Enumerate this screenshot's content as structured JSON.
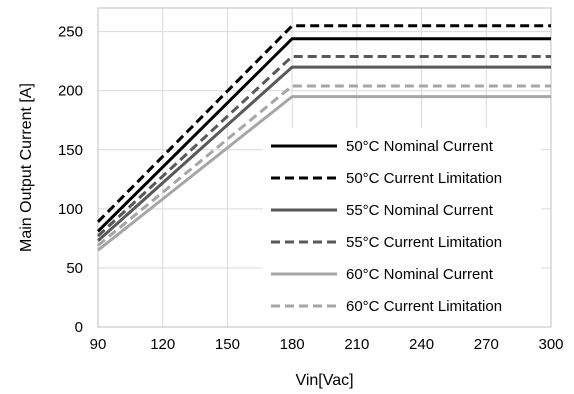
{
  "chart_data": {
    "type": "line",
    "title": "",
    "xlabel": "Vin[Vac]",
    "ylabel": "Main Output Current [A]",
    "xlim": [
      90,
      300
    ],
    "ylim": [
      0,
      270
    ],
    "xticks": [
      90,
      120,
      150,
      180,
      210,
      240,
      270,
      300
    ],
    "yticks": [
      0,
      50,
      100,
      150,
      200,
      250
    ],
    "grid": true,
    "legend_position": "bottom-right",
    "series": [
      {
        "name": "50°C Nominal Current",
        "color": "#000000",
        "dash": "solid",
        "x": [
          90,
          180,
          300
        ],
        "y": [
          81,
          244,
          244
        ]
      },
      {
        "name": "50°C Current Limitation",
        "color": "#000000",
        "dash": "dashed",
        "x": [
          90,
          180,
          300
        ],
        "y": [
          89,
          255,
          255
        ]
      },
      {
        "name": "55°C Nominal Current",
        "color": "#595959",
        "dash": "solid",
        "x": [
          90,
          180,
          300
        ],
        "y": [
          73,
          220,
          220
        ]
      },
      {
        "name": "55°C Current Limitation",
        "color": "#595959",
        "dash": "dashed",
        "x": [
          90,
          180,
          300
        ],
        "y": [
          77,
          229,
          229
        ]
      },
      {
        "name": "60°C Nominal Current",
        "color": "#a6a6a6",
        "dash": "solid",
        "x": [
          90,
          180,
          300
        ],
        "y": [
          65,
          195,
          195
        ]
      },
      {
        "name": "60°C Current Limitation",
        "color": "#a6a6a6",
        "dash": "dashed",
        "x": [
          90,
          180,
          300
        ],
        "y": [
          69,
          204,
          204
        ]
      }
    ]
  }
}
